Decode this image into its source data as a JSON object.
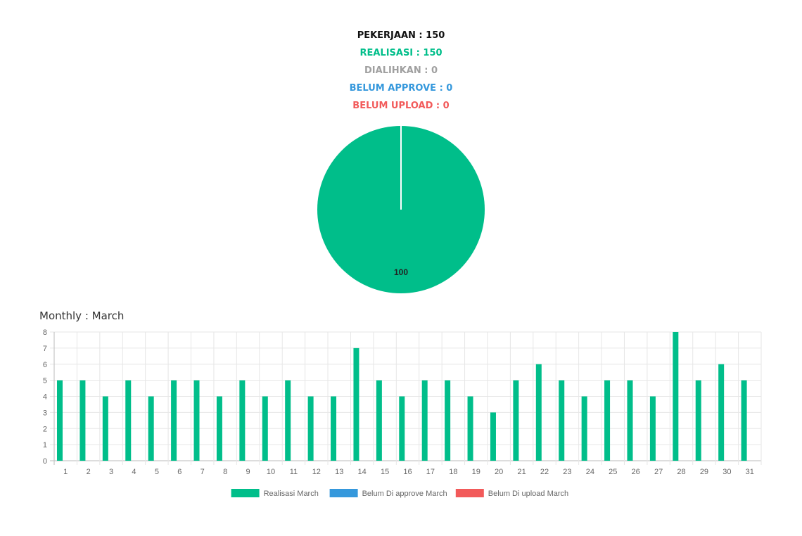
{
  "summary": {
    "pekerjaan": "PEKERJAAN : 150",
    "realisasi": "REALISASI : 150",
    "dialihkan": "DIALIHKAN : 0",
    "belum_approve": "BELUM APPROVE : 0",
    "belum_upload": "BELUM UPLOAD : 0"
  },
  "colors": {
    "realisasi": "#00be8a",
    "dialihkan": "#a0a0a0",
    "belum_approve": "#3598dc",
    "belum_upload": "#f25a5a",
    "pekerjaan": "#111111"
  },
  "pie_chart": {
    "type": "pie",
    "slices": [
      {
        "label": "REALISASI",
        "value": 100,
        "data_label": "100",
        "color": "#00be8a"
      },
      {
        "label": "DIALIHKAN",
        "value": 0,
        "color": "#a0a0a0"
      },
      {
        "label": "BELUM APPROVE",
        "value": 0,
        "color": "#3598dc"
      },
      {
        "label": "BELUM UPLOAD",
        "value": 0,
        "color": "#f25a5a"
      }
    ]
  },
  "chart_data": {
    "type": "bar",
    "title": "Monthly : March",
    "categories": [
      "1",
      "2",
      "3",
      "4",
      "5",
      "6",
      "7",
      "8",
      "9",
      "10",
      "11",
      "12",
      "13",
      "14",
      "15",
      "16",
      "17",
      "18",
      "19",
      "20",
      "21",
      "22",
      "23",
      "24",
      "25",
      "26",
      "27",
      "28",
      "29",
      "30",
      "31"
    ],
    "series": [
      {
        "name": "Realisasi March",
        "color": "#00be8a",
        "values": [
          5,
          5,
          4,
          5,
          4,
          5,
          5,
          4,
          5,
          4,
          5,
          4,
          4,
          7,
          5,
          4,
          5,
          5,
          4,
          3,
          5,
          6,
          5,
          4,
          5,
          5,
          4,
          8,
          5,
          6,
          5
        ]
      },
      {
        "name": "Belum Di approve March",
        "color": "#3598dc",
        "values": [
          0,
          0,
          0,
          0,
          0,
          0,
          0,
          0,
          0,
          0,
          0,
          0,
          0,
          0,
          0,
          0,
          0,
          0,
          0,
          0,
          0,
          0,
          0,
          0,
          0,
          0,
          0,
          0,
          0,
          0,
          0
        ]
      },
      {
        "name": "Belum Di upload March",
        "color": "#f25a5a",
        "values": [
          0,
          0,
          0,
          0,
          0,
          0,
          0,
          0,
          0,
          0,
          0,
          0,
          0,
          0,
          0,
          0,
          0,
          0,
          0,
          0,
          0,
          0,
          0,
          0,
          0,
          0,
          0,
          0,
          0,
          0,
          0
        ]
      }
    ],
    "ylim": [
      0,
      8
    ],
    "yticks": [
      "0",
      "1",
      "2",
      "3",
      "4",
      "5",
      "6",
      "7",
      "8"
    ],
    "grid": true,
    "legend_position": "bottom"
  }
}
